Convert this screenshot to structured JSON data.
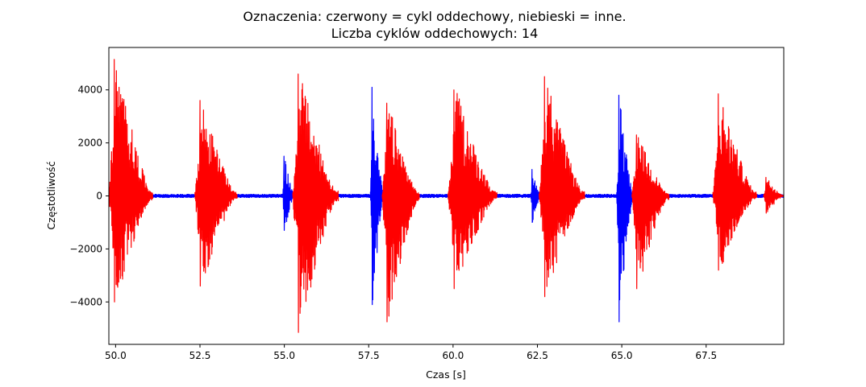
{
  "chart_data": {
    "type": "line",
    "title_line1": "Oznaczenia: czerwony = cykl oddechowy, niebieski = inne.",
    "title_line2": "Liczba cyklów oddechowych: 14",
    "xlabel": "Czas [s]",
    "ylabel": "Częstotliwość",
    "xlim": [
      49.8,
      69.8
    ],
    "ylim": [
      -5600,
      5600
    ],
    "xticks": [
      50.0,
      52.5,
      55.0,
      57.5,
      60.0,
      62.5,
      65.0,
      67.5
    ],
    "xtick_labels": [
      "50.0",
      "52.5",
      "55.0",
      "57.5",
      "60.0",
      "62.5",
      "65.0",
      "67.5"
    ],
    "yticks": [
      -4000,
      -2000,
      0,
      2000,
      4000
    ],
    "ytick_labels": [
      "−4000",
      "−2000",
      "0",
      "2000",
      "4000"
    ],
    "grid": false,
    "legend": "none",
    "colors": {
      "breath": "#ff0000",
      "other": "#0000ff",
      "frame": "#000000"
    },
    "series": [
      {
        "color": "#0000ff",
        "segments": [
          {
            "x_start": 49.8,
            "x_end": 69.8,
            "baseline_amplitude": 60
          },
          {
            "x_start": 54.95,
            "x_end": 55.3,
            "peak_pos": 1500,
            "peak_neg": -1300
          },
          {
            "x_start": 57.55,
            "x_end": 57.95,
            "peak_pos": 4100,
            "peak_neg": -4100
          },
          {
            "x_start": 62.3,
            "x_end": 62.6,
            "peak_pos": 1000,
            "peak_neg": -1000
          },
          {
            "x_start": 64.85,
            "x_end": 65.35,
            "peak_pos": 3800,
            "peak_neg": -4750
          }
        ]
      },
      {
        "color": "#ff0000",
        "segments": [
          {
            "x_start": 49.8,
            "x_end": 51.1,
            "peak_pos": 5150,
            "peak_neg": -4000
          },
          {
            "x_start": 52.35,
            "x_end": 53.6,
            "peak_pos": 3600,
            "peak_neg": -3400
          },
          {
            "x_start": 55.25,
            "x_end": 56.6,
            "peak_pos": 4600,
            "peak_neg": -5150
          },
          {
            "x_start": 57.9,
            "x_end": 59.0,
            "peak_pos": 3500,
            "peak_neg": -4750
          },
          {
            "x_start": 59.85,
            "x_end": 61.3,
            "peak_pos": 4000,
            "peak_neg": -3500
          },
          {
            "x_start": 62.55,
            "x_end": 63.9,
            "peak_pos": 4500,
            "peak_neg": -3800
          },
          {
            "x_start": 65.3,
            "x_end": 66.4,
            "peak_pos": 2300,
            "peak_neg": -3500
          },
          {
            "x_start": 67.7,
            "x_end": 69.0,
            "peak_pos": 3850,
            "peak_neg": -2800
          },
          {
            "x_start": 69.2,
            "x_end": 69.8,
            "peak_pos": 700,
            "peak_neg": -650
          }
        ]
      }
    ]
  }
}
